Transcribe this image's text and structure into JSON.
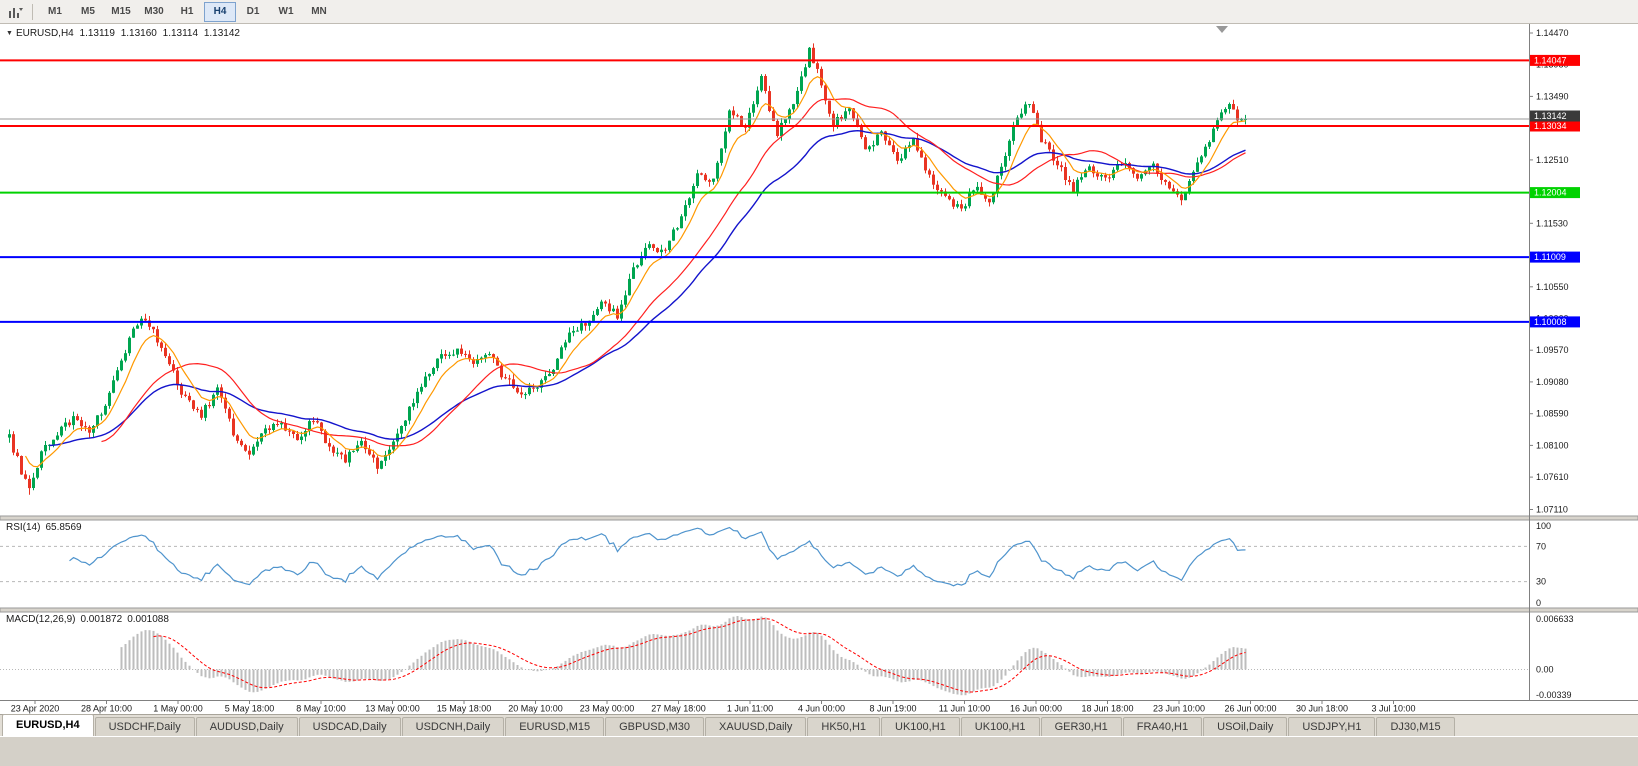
{
  "toolbar": {
    "timeframes": [
      "M1",
      "M5",
      "M15",
      "M30",
      "H1",
      "H4",
      "D1",
      "W1",
      "MN"
    ],
    "active_timeframe": "H4"
  },
  "quote": {
    "symbol_tf": "EURUSD,H4",
    "open": "1.13119",
    "high": "1.13160",
    "low": "1.13114",
    "close": "1.13142"
  },
  "bid": {
    "price": 1.13142,
    "label": "1.13142"
  },
  "levels": [
    {
      "price": 1.14047,
      "label": "1.14047",
      "color": "#FF0000"
    },
    {
      "price": 1.13034,
      "label": "1.13034",
      "color": "#FF0000"
    },
    {
      "price": 1.12004,
      "label": "1.12004",
      "color": "#00D200"
    },
    {
      "price": 1.11009,
      "label": "1.11009",
      "color": "#0000FF"
    },
    {
      "price": 1.10008,
      "label": "1.10008",
      "color": "#0000FF"
    }
  ],
  "price_axis": {
    "ticks": [
      "1.14470",
      "1.13980",
      "1.13490",
      "1.13000",
      "1.12510",
      "1.12020",
      "1.11530",
      "1.11040",
      "1.10550",
      "1.10060",
      "1.09570",
      "1.09080",
      "1.08590",
      "1.08100",
      "1.07610",
      "1.07110"
    ]
  },
  "time_axis": [
    "23 Apr 2020",
    "28 Apr 10:00",
    "1 May 00:00",
    "5 May 18:00",
    "8 May 10:00",
    "13 May 00:00",
    "15 May 18:00",
    "20 May 10:00",
    "23 May 00:00",
    "27 May 18:00",
    "1 Jun 11:00",
    "4 Jun 00:00",
    "8 Jun 19:00",
    "11 Jun 10:00",
    "16 Jun 00:00",
    "18 Jun 18:00",
    "23 Jun 10:00",
    "26 Jun 00:00",
    "30 Jun 18:00",
    "3 Jul 10:00"
  ],
  "rsi": {
    "title": "RSI(14)",
    "value": "65.8569",
    "axis": [
      "100",
      "70",
      "30",
      "0"
    ],
    "upper": 70,
    "lower": 30
  },
  "macd": {
    "title": "MACD(12,26,9)",
    "main": "0.001872",
    "signal": "0.001088",
    "axis_max": "0.006633",
    "axis_zero": "0.00",
    "axis_min": "-0.00339"
  },
  "tabs": {
    "active": "EURUSD,H4",
    "items": [
      "EURUSD,H4",
      "USDCHF,Daily",
      "AUDUSD,Daily",
      "USDCAD,Daily",
      "USDCNH,Daily",
      "EURUSD,M15",
      "GBPUSD,M30",
      "XAUUSD,Daily",
      "HK50,H1",
      "UK100,H1",
      "UK100,H1",
      "GER30,H1",
      "FRA40,H1",
      "USOil,Daily",
      "USDJPY,H1",
      "DJ30,M15"
    ]
  },
  "chart_data": {
    "type": "candlestick",
    "symbol": "EURUSD",
    "period": "H4",
    "bars": 310,
    "visible_range": {
      "top": 1.14609,
      "bottom": 1.07009
    },
    "level_prices": [
      1.14047,
      1.13034,
      1.12004,
      1.11009,
      1.10008
    ],
    "price_anchors": [
      [
        0,
        1.0822
      ],
      [
        2,
        1.0788
      ],
      [
        5,
        1.0738
      ],
      [
        8,
        1.0798
      ],
      [
        12,
        1.0828
      ],
      [
        16,
        1.0852
      ],
      [
        20,
        1.0836
      ],
      [
        24,
        1.0872
      ],
      [
        28,
        1.0942
      ],
      [
        33,
        1.1012
      ],
      [
        36,
        1.0988
      ],
      [
        40,
        1.0932
      ],
      [
        44,
        1.0882
      ],
      [
        48,
        1.0856
      ],
      [
        52,
        1.0896
      ],
      [
        56,
        1.0828
      ],
      [
        60,
        1.0793
      ],
      [
        64,
        1.0836
      ],
      [
        68,
        1.0846
      ],
      [
        72,
        1.0816
      ],
      [
        76,
        1.0852
      ],
      [
        80,
        1.0806
      ],
      [
        84,
        1.079
      ],
      [
        88,
        1.082
      ],
      [
        92,
        1.078
      ],
      [
        96,
        1.0816
      ],
      [
        100,
        1.0866
      ],
      [
        104,
        1.0916
      ],
      [
        108,
        1.0946
      ],
      [
        112,
        1.096
      ],
      [
        116,
        1.0936
      ],
      [
        120,
        1.0952
      ],
      [
        124,
        1.091
      ],
      [
        128,
        1.0894
      ],
      [
        132,
        1.09
      ],
      [
        136,
        1.093
      ],
      [
        140,
        1.098
      ],
      [
        144,
        1.1
      ],
      [
        148,
        1.103
      ],
      [
        152,
        1.101
      ],
      [
        156,
        1.108
      ],
      [
        160,
        1.112
      ],
      [
        164,
        1.111
      ],
      [
        168,
        1.1165
      ],
      [
        172,
        1.1225
      ],
      [
        176,
        1.122
      ],
      [
        180,
        1.1325
      ],
      [
        184,
        1.13
      ],
      [
        188,
        1.1375
      ],
      [
        192,
        1.129
      ],
      [
        196,
        1.134
      ],
      [
        200,
        1.1418
      ],
      [
        203,
        1.137
      ],
      [
        206,
        1.1303
      ],
      [
        210,
        1.1335
      ],
      [
        214,
        1.1265
      ],
      [
        218,
        1.1292
      ],
      [
        222,
        1.125
      ],
      [
        226,
        1.1285
      ],
      [
        230,
        1.1222
      ],
      [
        234,
        1.119
      ],
      [
        238,
        1.1176
      ],
      [
        242,
        1.1212
      ],
      [
        245,
        1.118
      ],
      [
        248,
        1.1242
      ],
      [
        252,
        1.132
      ],
      [
        255,
        1.1342
      ],
      [
        258,
        1.128
      ],
      [
        262,
        1.1246
      ],
      [
        266,
        1.1206
      ],
      [
        270,
        1.124
      ],
      [
        274,
        1.122
      ],
      [
        278,
        1.1246
      ],
      [
        282,
        1.1226
      ],
      [
        286,
        1.1246
      ],
      [
        290,
        1.1203
      ],
      [
        293,
        1.1188
      ],
      [
        296,
        1.1232
      ],
      [
        300,
        1.1283
      ],
      [
        303,
        1.1328
      ],
      [
        305,
        1.1342
      ],
      [
        307,
        1.1306
      ],
      [
        309,
        1.1314
      ]
    ],
    "wick_extremes": {
      "5": 0.0006
    },
    "ma": [
      {
        "name": "fast",
        "period": 8,
        "color": "#FF9900"
      },
      {
        "name": "mid",
        "period": 24,
        "color": "#FF2020"
      },
      {
        "name": "slow",
        "period": 40,
        "color": "#1414CC"
      }
    ]
  },
  "colors": {
    "up": "#00A550",
    "down": "#E93423",
    "rsi_line": "#4f94cd",
    "macd_hist": "#BDBDBD",
    "macd_signal": "#FF0000",
    "bid_line": "#9a9a9a",
    "bid_label_bg": "#3a3a3a",
    "axis_text": "#1a1a1a"
  }
}
